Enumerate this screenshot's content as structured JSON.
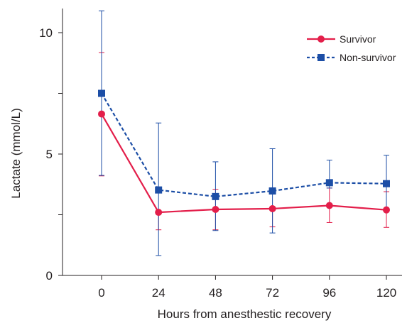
{
  "chart_data": {
    "type": "line",
    "xlabel": "Hours from anesthestic recovery",
    "ylabel": "Lactate (mmol/L)",
    "x": [
      0,
      24,
      48,
      72,
      96,
      120
    ],
    "x_ticks": [
      "0",
      "24",
      "48",
      "72",
      "96",
      "120"
    ],
    "y_ticks": [
      "0",
      "5",
      "10"
    ],
    "ylim": [
      0,
      11
    ],
    "legend_position": "top-right",
    "series": [
      {
        "name": "Survivor",
        "values": [
          6.65,
          2.6,
          2.72,
          2.75,
          2.88,
          2.7
        ],
        "error_low": [
          4.1,
          1.88,
          1.88,
          2.0,
          2.18,
          1.98
        ],
        "error_high": [
          9.18,
          2.6,
          3.55,
          2.75,
          3.6,
          3.45
        ],
        "color": "#e31e4a",
        "line_style": "solid",
        "marker": "circle"
      },
      {
        "name": "Non-survivor",
        "values": [
          7.5,
          3.52,
          3.25,
          3.48,
          3.82,
          3.78
        ],
        "error_low": [
          4.12,
          0.82,
          1.85,
          1.75,
          3.6,
          2.72
        ],
        "error_high": [
          10.9,
          6.28,
          4.68,
          5.22,
          4.75,
          4.95
        ],
        "color": "#1c4ea6",
        "line_style": "dashed",
        "marker": "square"
      }
    ]
  }
}
